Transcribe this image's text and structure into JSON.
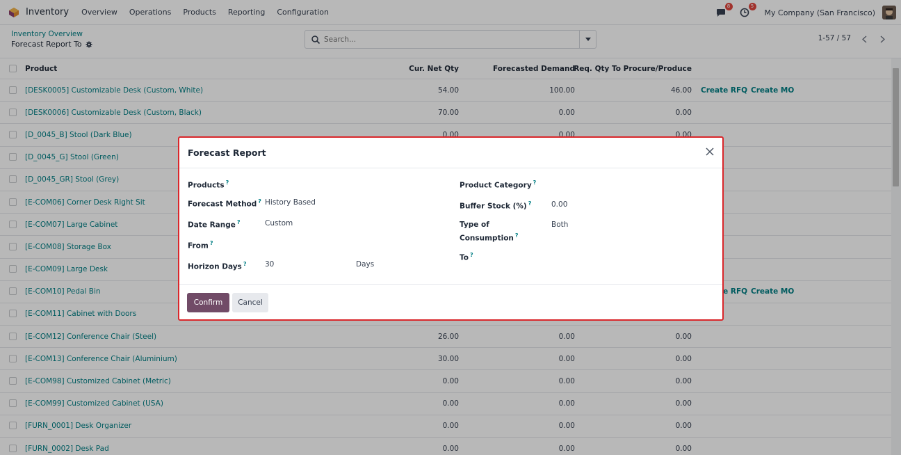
{
  "navbar": {
    "app_name": "Inventory",
    "menu": [
      "Overview",
      "Operations",
      "Products",
      "Reporting",
      "Configuration"
    ],
    "messages_count": "8",
    "activities_count": "5",
    "company": "My Company (San Francisco)"
  },
  "control": {
    "breadcrumb": "Inventory Overview",
    "subtitle": "Forecast Report To",
    "search_placeholder": "Search...",
    "pager": "1-57 / 57"
  },
  "list": {
    "headers": {
      "product": "Product",
      "net_qty": "Cur. Net Qty",
      "demand": "Forecasted Demand",
      "req": "Req. Qty To Procure/Produce"
    },
    "rows": [
      {
        "product": "[DESK0005] Customizable Desk (Custom, White)",
        "net": "54.00",
        "demand": "100.00",
        "req": "46.00",
        "rfq": "Create RFQ",
        "mo": "Create MO"
      },
      {
        "product": "[DESK0006] Customizable Desk (Custom, Black)",
        "net": "70.00",
        "demand": "0.00",
        "req": "0.00",
        "rfq": "",
        "mo": ""
      },
      {
        "product": "[D_0045_B] Stool (Dark Blue)",
        "net": "0.00",
        "demand": "0.00",
        "req": "0.00",
        "rfq": "",
        "mo": ""
      },
      {
        "product": "[D_0045_G] Stool (Green)",
        "net": "",
        "demand": "",
        "req": "",
        "rfq": "",
        "mo": ""
      },
      {
        "product": "[D_0045_GR] Stool (Grey)",
        "net": "",
        "demand": "",
        "req": "",
        "rfq": "",
        "mo": ""
      },
      {
        "product": "[E-COM06] Corner Desk Right Sit",
        "net": "",
        "demand": "",
        "req": "",
        "rfq": "",
        "mo": ""
      },
      {
        "product": "[E-COM07] Large Cabinet",
        "net": "",
        "demand": "",
        "req": "",
        "rfq": "",
        "mo": ""
      },
      {
        "product": "[E-COM08] Storage Box",
        "net": "",
        "demand": "",
        "req": "",
        "rfq": "",
        "mo": ""
      },
      {
        "product": "[E-COM09] Large Desk",
        "net": "",
        "demand": "",
        "req": "",
        "rfq": "",
        "mo": ""
      },
      {
        "product": "[E-COM10] Pedal Bin",
        "net": "",
        "demand": "",
        "req": "",
        "rfq": "Create RFQ",
        "mo": "Create MO"
      },
      {
        "product": "[E-COM11] Cabinet with Doors",
        "net": "",
        "demand": "",
        "req": "",
        "rfq": "",
        "mo": ""
      },
      {
        "product": "[E-COM12] Conference Chair (Steel)",
        "net": "26.00",
        "demand": "0.00",
        "req": "0.00",
        "rfq": "",
        "mo": ""
      },
      {
        "product": "[E-COM13] Conference Chair (Aluminium)",
        "net": "30.00",
        "demand": "0.00",
        "req": "0.00",
        "rfq": "",
        "mo": ""
      },
      {
        "product": "[E-COM98] Customized Cabinet (Metric)",
        "net": "0.00",
        "demand": "0.00",
        "req": "0.00",
        "rfq": "",
        "mo": ""
      },
      {
        "product": "[E-COM99] Customized Cabinet (USA)",
        "net": "0.00",
        "demand": "0.00",
        "req": "0.00",
        "rfq": "",
        "mo": ""
      },
      {
        "product": "[FURN_0001] Desk Organizer",
        "net": "0.00",
        "demand": "0.00",
        "req": "0.00",
        "rfq": "",
        "mo": ""
      },
      {
        "product": "[FURN_0002] Desk Pad",
        "net": "0.00",
        "demand": "0.00",
        "req": "0.00",
        "rfq": "",
        "mo": ""
      }
    ]
  },
  "modal": {
    "title": "Forecast Report",
    "products_label": "Products",
    "method_label": "Forecast Method",
    "method_value": "History Based",
    "range_label": "Date Range",
    "range_value": "Custom",
    "from_label": "From",
    "horizon_label": "Horizon Days",
    "horizon_value": "30",
    "horizon_unit": "Days",
    "category_label": "Product Category",
    "buffer_label": "Buffer Stock (%)",
    "buffer_value": "0.00",
    "consumption_label_1": "Type of",
    "consumption_label_2": "Consumption",
    "consumption_value": "Both",
    "to_label": "To",
    "help_mark": "?",
    "confirm": "Confirm",
    "cancel": "Cancel"
  },
  "colors": {
    "accent": "#017e84",
    "primary_button": "#714b67",
    "highlight_border": "#d9262a"
  }
}
